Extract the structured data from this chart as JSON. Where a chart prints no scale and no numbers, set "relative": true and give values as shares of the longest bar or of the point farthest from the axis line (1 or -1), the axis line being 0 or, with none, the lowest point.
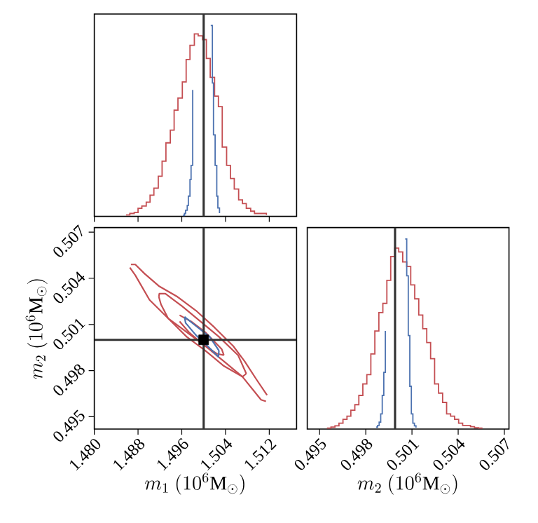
{
  "chart_data": [
    {
      "type": "step",
      "relative": true,
      "xlim": [
        1.48,
        1.517
      ],
      "tick_labels": false,
      "xticks": [
        {
          "value": 1.48,
          "label": null
        },
        {
          "value": 1.488,
          "label": null
        },
        {
          "value": 1.496,
          "label": null
        },
        {
          "value": 1.504,
          "label": null
        },
        {
          "value": 1.512,
          "label": null
        }
      ],
      "ref_lines": [
        {
          "axis": "x",
          "value": 1.5,
          "color": "#333333"
        }
      ],
      "series": [
        {
          "color": "#c44e52",
          "x": [
            1.4858,
            1.4865,
            1.4873,
            1.488,
            1.4887,
            1.4895,
            1.4902,
            1.4909,
            1.4917,
            1.4924,
            1.4931,
            1.4939,
            1.4946,
            1.4953,
            1.4961,
            1.4968,
            1.4975,
            1.4983,
            1.499,
            1.4998,
            1.5005,
            1.5012,
            1.502,
            1.5027,
            1.5034,
            1.5042,
            1.5049,
            1.5056,
            1.5064,
            1.5071,
            1.5078,
            1.5086,
            1.5093,
            1.51,
            1.5108,
            1.5115
          ],
          "values": [
            0.007,
            0.015,
            0.02,
            0.042,
            0.054,
            0.074,
            0.111,
            0.148,
            0.21,
            0.289,
            0.385,
            0.452,
            0.556,
            0.62,
            0.704,
            0.822,
            0.896,
            0.956,
            0.946,
            0.926,
            0.827,
            0.728,
            0.63,
            0.575,
            0.363,
            0.267,
            0.198,
            0.143,
            0.086,
            0.067,
            0.042,
            0.027,
            0.015,
            0.015,
            0.015,
            0.007
          ]
        },
        {
          "color": "#4c72b0",
          "x": [
            1.4962,
            1.4965,
            1.4967,
            1.497,
            1.4972,
            1.4975,
            1.4977,
            1.498
          ],
          "values": [
            0.005,
            0.015,
            0.032,
            0.057,
            0.106,
            0.193,
            0.267,
            0.662
          ]
        },
        {
          "color": "#4c72b0",
          "x": [
            1.5013,
            1.5016,
            1.5018,
            1.5021,
            1.5024,
            1.5026,
            1.5029
          ],
          "values": [
            1,
            0.699,
            0.427,
            0.267,
            0.106,
            0.044,
            0.017
          ]
        }
      ]
    },
    {
      "type": "line",
      "xlabel": "m_1\\ (10^{6}\\mathrm{M}_{\\odot})",
      "ylabel": "m_2\\ (10^{6}\\mathrm{M}_{\\odot})",
      "xlim": [
        1.48,
        1.517
      ],
      "ylim": [
        0.4942,
        0.5073
      ],
      "xticks": [
        {
          "value": 1.48,
          "label": "1.480"
        },
        1.488,
        1.496,
        1.504,
        1.512
      ],
      "yticks": [
        0.495,
        0.498,
        0.501,
        0.504,
        0.507
      ],
      "ref_lines": [
        {
          "axis": "x",
          "value": 1.5,
          "color": "#333333"
        },
        {
          "axis": "y",
          "value": 0.5,
          "color": "#333333"
        }
      ],
      "series": [
        {
          "color": "#c44e52",
          "x": [
            1.4867,
            1.4875,
            1.4892,
            1.4918,
            1.4952,
            1.4986,
            1.502,
            1.5054,
            1.5075,
            1.5097,
            1.5116
          ],
          "values": [
            0.5049,
            0.5049,
            0.5043,
            0.5035,
            0.5028,
            0.5019,
            0.5008,
            0.4996,
            0.4986,
            0.4974,
            0.4964
          ]
        },
        {
          "color": "#c44e52",
          "x": [
            1.4865,
            1.4875,
            1.4901,
            1.4935,
            1.4969,
            1.5003,
            1.5037,
            1.5071,
            1.5105,
            1.5114
          ],
          "values": [
            0.5047,
            0.5042,
            0.5026,
            0.5014,
            0.5005,
            0.4996,
            0.4986,
            0.4976,
            0.4961,
            0.496
          ]
        },
        {
          "color": "#c44e52",
          "x": [
            1.4918,
            1.4919,
            1.493,
            1.496,
            1.4994,
            1.5028,
            1.5063,
            1.5078
          ],
          "values": [
            0.5028,
            0.503,
            0.503,
            0.5022,
            0.5012,
            0.5002,
            0.499,
            0.4978
          ]
        },
        {
          "color": "#c44e52",
          "x": [
            1.4918,
            1.4922,
            1.4935,
            1.4969,
            1.5003,
            1.5037,
            1.5071,
            1.5078
          ],
          "values": [
            0.5028,
            0.5023,
            0.5014,
            0.5002,
            0.4993,
            0.4983,
            0.4976,
            0.4978
          ]
        },
        {
          "color": "#c44e52",
          "x": [
            1.4956,
            1.4977,
            1.5003,
            1.5033,
            1.5037
          ],
          "values": [
            0.5016,
            0.5012,
            0.5005,
            0.4994,
            0.499
          ]
        },
        {
          "color": "#c44e52",
          "x": [
            1.4956,
            1.4973,
            1.4999,
            1.5024,
            1.5037
          ],
          "values": [
            0.5012,
            0.5005,
            0.4997,
            0.4991,
            0.499
          ]
        },
        {
          "color": "#4c72b0",
          "x": [
            1.4965,
            1.4986,
            1.5011,
            1.5028
          ],
          "values": [
            0.5015,
            0.5009,
            0.5002,
            0.4993
          ]
        },
        {
          "color": "#4c72b0",
          "x": [
            1.4965,
            1.4967,
            1.4986,
            1.5007,
            1.5027,
            1.5028
          ],
          "values": [
            0.5015,
            0.5011,
            0.5003,
            0.4996,
            0.4989,
            0.4993
          ]
        },
        {
          "type": "scatter",
          "marker": "square",
          "color": "#000000",
          "x": [
            1.5
          ],
          "values": [
            0.5
          ]
        }
      ]
    },
    {
      "type": "step",
      "relative": true,
      "xlabel": "m_2\\ (10^{6}\\mathrm{M}_{\\odot})",
      "xlim": [
        0.4942,
        0.5073
      ],
      "tick_labels": "x",
      "xticks": [
        0.495,
        0.498,
        0.501,
        0.504,
        0.507
      ],
      "ref_lines": [
        {
          "axis": "x",
          "value": 0.4999,
          "color": "#333333"
        }
      ],
      "series": [
        {
          "color": "#c44e52",
          "x": [
            0.49548,
            0.49574,
            0.496,
            0.49626,
            0.49652,
            0.49678,
            0.49703,
            0.49729,
            0.49755,
            0.49781,
            0.49807,
            0.49833,
            0.49859,
            0.49885,
            0.49911,
            0.49937,
            0.49962,
            0.49988,
            0.50014,
            0.5004,
            0.50066,
            0.50092,
            0.50118,
            0.50144,
            0.5017,
            0.50196,
            0.50221,
            0.50247,
            0.50273,
            0.50299,
            0.50325,
            0.50351,
            0.50377,
            0.50403,
            0.50429,
            0.50455,
            0.5048,
            0.50506,
            0.50532,
            0.50558
          ],
          "values": [
            0.005,
            0.01,
            0.017,
            0.031,
            0.051,
            0.068,
            0.099,
            0.128,
            0.177,
            0.237,
            0.286,
            0.395,
            0.516,
            0.613,
            0.661,
            0.782,
            0.908,
            0.952,
            0.932,
            0.879,
            0.855,
            0.758,
            0.685,
            0.6,
            0.528,
            0.455,
            0.37,
            0.237,
            0.189,
            0.14,
            0.08,
            0.068,
            0.051,
            0.031,
            0.019,
            0.019,
            0.012,
            0.007,
            0.005,
            0.005
          ]
        },
        {
          "color": "#4c72b0",
          "x": [
            0.49867,
            0.49877,
            0.49887,
            0.49897,
            0.49907,
            0.49917,
            0.49927
          ],
          "values": [
            0.01,
            0.019,
            0.036,
            0.08,
            0.177,
            0.298,
            0.516
          ]
        },
        {
          "color": "#4c72b0",
          "x": [
            0.50056,
            0.50066,
            0.50076,
            0.50086,
            0.50096,
            0.50106,
            0.50116,
            0.50126
          ],
          "values": [
            1,
            0.806,
            0.492,
            0.225,
            0.08,
            0.031,
            0.017,
            0.007
          ]
        }
      ]
    }
  ]
}
